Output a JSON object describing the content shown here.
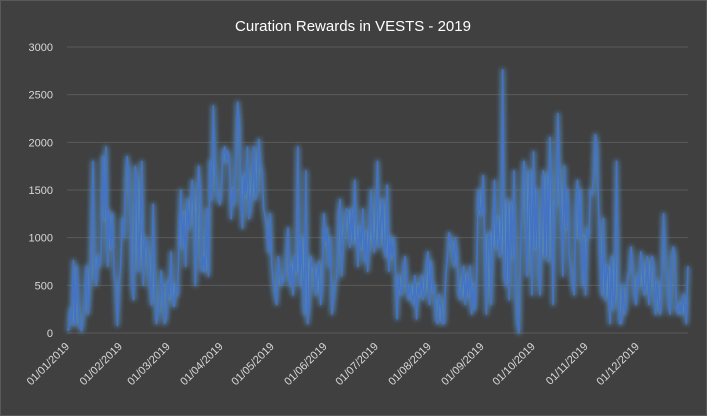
{
  "chart_data": {
    "type": "line",
    "title": "Curation Rewards in VESTS - 2019",
    "xlabel": "",
    "ylabel": "",
    "ylim": [
      0,
      3000
    ],
    "yticks": [
      "0",
      "500",
      "1000",
      "1500",
      "2000",
      "2500",
      "3000"
    ],
    "grid": true,
    "legend": "none",
    "line_color": "#4472c4",
    "glow_color": "#5b9bd5",
    "x_start": "01/01/2019",
    "x_end": "31/12/2019",
    "xticks": [
      "01/01/2019",
      "01/02/2019",
      "01/03/2019",
      "01/04/2019",
      "01/05/2019",
      "01/06/2019",
      "01/07/2019",
      "01/08/2019",
      "01/09/2019",
      "01/10/2019",
      "01/11/2019",
      "01/12/2019"
    ],
    "series": [
      {
        "values": [
          40,
          30,
          250,
          100,
          760,
          80,
          700,
          300,
          60,
          20,
          150,
          300,
          700,
          200,
          500,
          1000,
          1800,
          600,
          500,
          800,
          700,
          850,
          1850,
          1200,
          1950,
          700,
          1270,
          900,
          1250,
          600,
          500,
          80,
          500,
          700,
          1200,
          1000,
          1500,
          1850,
          1700,
          1150,
          500,
          350,
          1750,
          1600,
          650,
          1100,
          1800,
          500,
          1000,
          950,
          780,
          550,
          300,
          1350,
          500,
          100,
          200,
          300,
          650,
          400,
          100,
          150,
          550,
          380,
          850,
          300,
          280,
          500,
          400,
          1000,
          1500,
          900,
          1250,
          700,
          1400,
          1100,
          1300,
          1600,
          1300,
          500,
          1000,
          1750,
          1500,
          650,
          800,
          650,
          1300,
          600,
          1800,
          1400,
          2380,
          1800,
          1550,
          1400,
          1350,
          1500,
          1900,
          1950,
          1800,
          1900,
          1750,
          1200,
          1500,
          1350,
          1950,
          2420,
          2200,
          1350,
          1100,
          1650,
          1450,
          1950,
          1200,
          1300,
          1550,
          1950,
          1400,
          1500,
          2030,
          1750,
          1700,
          1300,
          1200,
          1100,
          850,
          1250,
          700,
          500,
          400,
          300,
          800,
          600,
          500,
          550,
          600,
          850,
          1100,
          500,
          700,
          400,
          800,
          650,
          1950,
          500,
          1000,
          600,
          200,
          1700,
          100,
          300,
          800,
          700,
          700,
          400,
          600,
          750,
          300,
          500,
          1250,
          950,
          1100,
          700,
          1000,
          200,
          350,
          500,
          600,
          1250,
          1400,
          600,
          1000,
          1100,
          1300,
          1250,
          900,
          1300,
          950,
          1600,
          1100,
          700,
          1100,
          900,
          1300,
          750,
          1050,
          650,
          1050,
          1500,
          1000,
          850,
          1100,
          1800,
          900,
          1150,
          1400,
          900,
          800,
          1550,
          650,
          1000,
          800,
          1000,
          700,
          150,
          600,
          450,
          400,
          700,
          800,
          550,
          350,
          500,
          400,
          300,
          600,
          150,
          500,
          400,
          600,
          350,
          450,
          700,
          850,
          300,
          750,
          450,
          500,
          150,
          100,
          400,
          300,
          100,
          100,
          600,
          800,
          1050,
          950,
          900,
          700,
          1000,
          800,
          400,
          350,
          500,
          700,
          300,
          600,
          400,
          700,
          200,
          500,
          250,
          600,
          1500,
          1300,
          1250,
          1650,
          900,
          200,
          1000,
          1050,
          300,
          1100,
          1600,
          900,
          1200,
          800,
          1000,
          2760,
          600,
          500,
          1400,
          350,
          1350,
          800,
          1700,
          400,
          100,
          0,
          900,
          1400,
          1800,
          1700,
          600,
          1300,
          1700,
          400,
          1900,
          900,
          1500,
          600,
          400,
          1150,
          1700,
          800,
          1650,
          750,
          2050,
          1600,
          300,
          1350,
          1350,
          2300,
          1600,
          1200,
          600,
          1750,
          1100,
          1500,
          800,
          650,
          500,
          400,
          1300,
          1600,
          1000,
          1500,
          500,
          1000,
          400,
          1100,
          1000,
          1500,
          1450,
          1650,
          2080,
          1950,
          1300,
          800,
          400,
          1200,
          350,
          700,
          650,
          100,
          800,
          250,
          400,
          1800,
          600,
          100,
          100,
          500,
          200,
          300,
          600,
          650,
          900,
          700,
          400,
          300,
          600,
          500,
          850,
          700,
          400,
          500,
          800,
          300,
          600,
          800,
          700,
          200,
          550,
          300,
          200,
          650,
          1250,
          800,
          600,
          300,
          200,
          800,
          900,
          800,
          250,
          200,
          300,
          200,
          400,
          300,
          100,
          700
        ]
      }
    ]
  }
}
